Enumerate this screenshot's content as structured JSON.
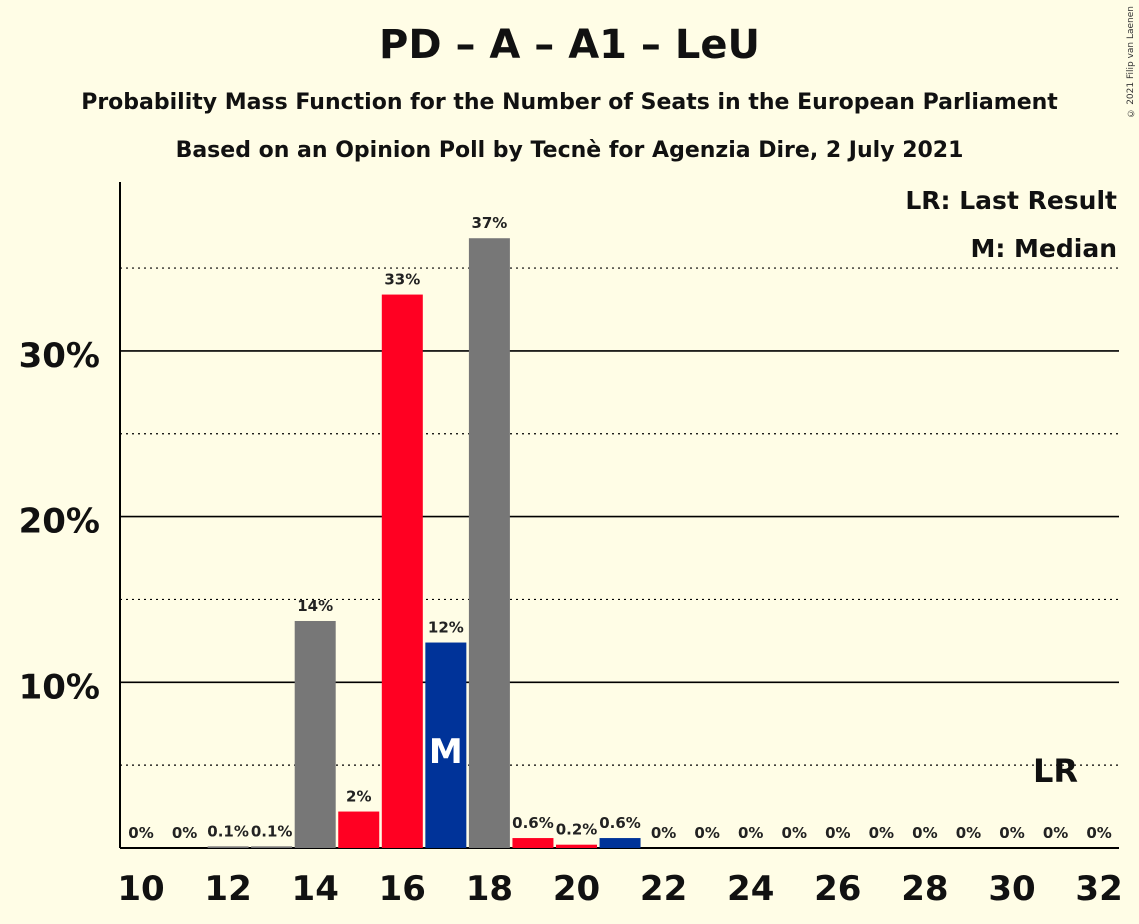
{
  "title": "PD – A – A1 – LeU",
  "subtitle_1": "Probability Mass Function for the Number of Seats in the European Parliament",
  "subtitle_2": "Based on an Opinion Poll by Tecnè for Agenzia Dire, 2 July 2021",
  "copyright": "© 2021 Filip van Laenen",
  "legend": {
    "last_result": "LR: Last Result",
    "median": "M: Median"
  },
  "markers": {
    "median_label": "M",
    "median_seats": 17,
    "last_result_label": "LR",
    "last_result_seats": 31
  },
  "colors": {
    "background": "#FFFDE6",
    "grey": "#777777",
    "red": "#FF0022",
    "blue": "#003399",
    "axis": "#000000"
  },
  "chart_data": {
    "type": "bar",
    "x": [
      10,
      11,
      12,
      13,
      14,
      15,
      16,
      17,
      18,
      19,
      20,
      21,
      22,
      23,
      24,
      25,
      26,
      27,
      28,
      29,
      30,
      31,
      32
    ],
    "values": [
      0,
      0,
      0.1,
      0.1,
      13.7,
      2.2,
      33.4,
      12.4,
      36.8,
      0.6,
      0.2,
      0.6,
      0,
      0,
      0,
      0,
      0,
      0,
      0,
      0,
      0,
      0,
      0
    ],
    "labels": [
      "0%",
      "0%",
      "0.1%",
      "0.1%",
      "14%",
      "2%",
      "33%",
      "12%",
      "37%",
      "0.6%",
      "0.2%",
      "0.6%",
      "0%",
      "0%",
      "0%",
      "0%",
      "0%",
      "0%",
      "0%",
      "0%",
      "0%",
      "0%",
      "0%"
    ],
    "bar_colors": [
      "grey",
      "grey",
      "grey",
      "grey",
      "grey",
      "red",
      "red",
      "blue",
      "grey",
      "red",
      "red",
      "blue",
      "grey",
      "grey",
      "grey",
      "grey",
      "grey",
      "grey",
      "grey",
      "grey",
      "grey",
      "grey",
      "grey"
    ],
    "x_ticks": [
      10,
      12,
      14,
      16,
      18,
      20,
      22,
      24,
      26,
      28,
      30,
      32
    ],
    "y_ticks": [
      {
        "value": 10,
        "label": "10%"
      },
      {
        "value": 20,
        "label": "20%"
      },
      {
        "value": 30,
        "label": "30%"
      }
    ],
    "y_minor_ticks": [
      5,
      15,
      25,
      35
    ],
    "ylim": [
      0,
      40
    ],
    "xlabel": "",
    "ylabel": "",
    "grid": true,
    "legend_position": "top-right"
  }
}
